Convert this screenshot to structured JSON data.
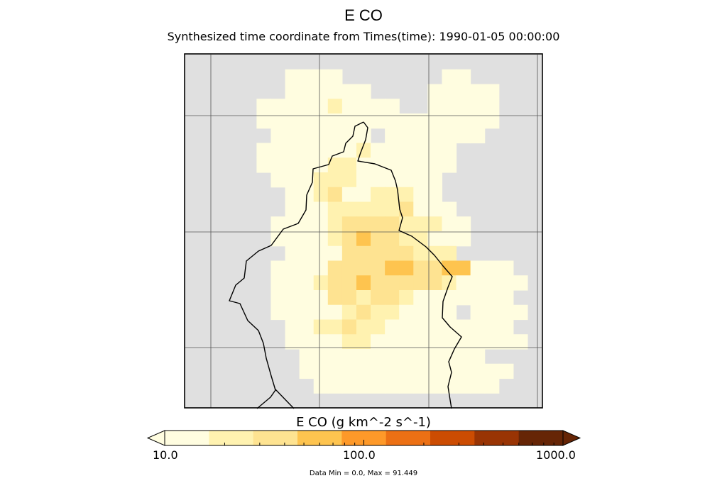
{
  "title": "E CO",
  "subtitle": "Synthesized time coordinate from Times(time): 1990-01-05 00:00:00",
  "colorbar": {
    "title": "E CO (g km^-2 s^-1)",
    "tick_labels": [
      "10.0",
      "100.0",
      "1000.0"
    ],
    "scale": "log",
    "range": [
      10.0,
      1000.0
    ],
    "colors": [
      "#fffde0",
      "#fff2b0",
      "#fee391",
      "#fec44f",
      "#fe9929",
      "#ec7014",
      "#cc4c02",
      "#993404",
      "#662506"
    ],
    "under_color": "#fffde0",
    "over_color": "#662506"
  },
  "footnote": "Data Min = 0.0, Max = 91.449",
  "map": {
    "background_color": "#e0e0e0",
    "grid_lines": true,
    "grid": {
      "rows": 24,
      "cols": 25,
      "levels": [
        "0000000000000000000000000",
        "0000000111100000001100000",
        "0000000111111000011111000",
        "0000011111211110011111000",
        "0000011111111111111111000",
        "0000001111111011111110000",
        "0000011111112111111000000",
        "0000011111221111111000000",
        "0000001112221111110000000",
        "0000000112311222110000000",
        "0000000111222223111000000",
        "0000001111233332221100000",
        "0000001111234332211100000",
        "0000000111133333222000000",
        "0000001111333344334411100",
        "0000001112334333332111110",
        "0000001111332332111111100",
        "0000001111123221111011110",
        "0000000112232211111111100",
        "0000000111122111111111110",
        "0000000011111111111110000",
        "0000000011111111111111100",
        "0000000001111111111111000",
        "0000000000000000000000000"
      ]
    }
  }
}
